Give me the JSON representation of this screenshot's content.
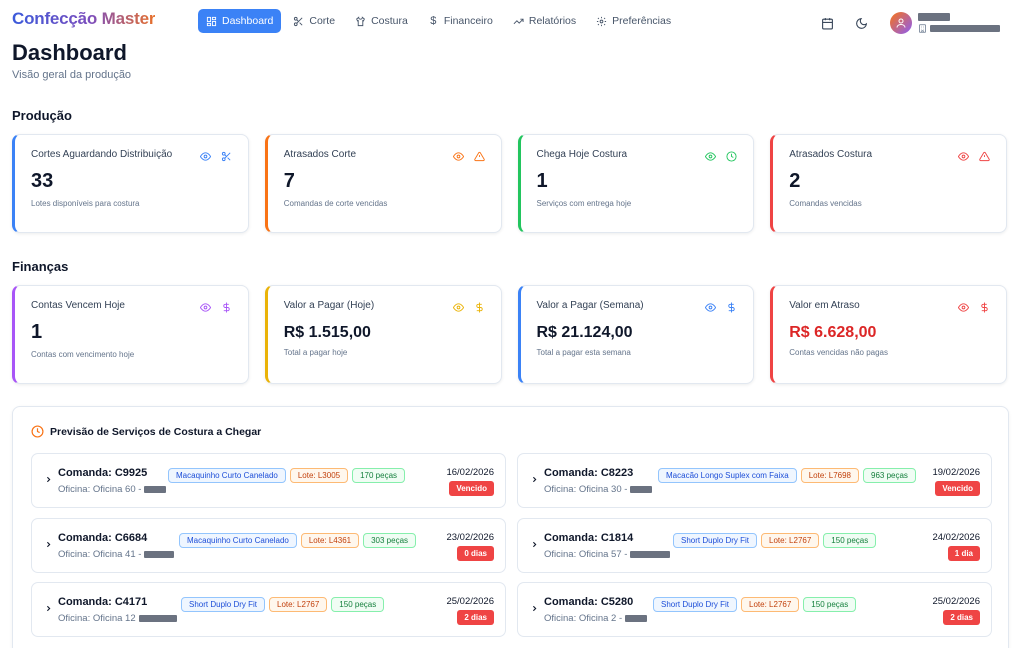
{
  "app": {
    "brand": "Confecção Master",
    "nav": [
      {
        "label": "Dashboard",
        "icon": "dashboard-icon",
        "active": true
      },
      {
        "label": "Corte",
        "icon": "scissors-icon",
        "active": false
      },
      {
        "label": "Costura",
        "icon": "shirt-icon",
        "active": false
      },
      {
        "label": "Financeiro",
        "icon": "dollar-icon",
        "active": false
      },
      {
        "label": "Relatórios",
        "icon": "trend-icon",
        "active": false
      },
      {
        "label": "Preferências",
        "icon": "gear-icon",
        "active": false
      }
    ]
  },
  "header": {
    "title": "Dashboard",
    "subtitle": "Visão geral da produção"
  },
  "sections": {
    "production": "Produção",
    "finance": "Finanças",
    "forecast": "Previsão de Serviços de Costura a Chegar"
  },
  "production_cards": [
    {
      "label": "Cortes Aguardando Distribuição",
      "value": "33",
      "hint": "Lotes disponíveis para costura",
      "accent": "#3b82f6",
      "icon2": "scissors-icon"
    },
    {
      "label": "Atrasados Corte",
      "value": "7",
      "hint": "Comandas de corte vencidas",
      "accent": "#f97316",
      "icon2": "warning-icon"
    },
    {
      "label": "Chega Hoje Costura",
      "value": "1",
      "hint": "Serviços com entrega hoje",
      "accent": "#22c55e",
      "icon2": "clock-icon"
    },
    {
      "label": "Atrasados Costura",
      "value": "2",
      "hint": "Comandas vencidas",
      "accent": "#ef4444",
      "icon2": "warning-icon"
    }
  ],
  "finance_cards": [
    {
      "label": "Contas Vencem Hoje",
      "value": "1",
      "hint": "Contas com vencimento hoje",
      "accent": "#a855f7",
      "icon2": "dollar-icon"
    },
    {
      "label": "Valor a Pagar (Hoje)",
      "value": "R$ 1.515,00",
      "hint": "Total a pagar hoje",
      "accent": "#eab308",
      "icon2": "dollar-icon"
    },
    {
      "label": "Valor a Pagar (Semana)",
      "value": "R$ 21.124,00",
      "hint": "Total a pagar esta semana",
      "accent": "#3b82f6",
      "icon2": "dollar-icon"
    },
    {
      "label": "Valor em Atraso",
      "value": "R$ 6.628,00",
      "hint": "Contas vencidas não pagas",
      "accent": "#ef4444",
      "icon2": "dollar-icon"
    }
  ],
  "services": [
    {
      "title": "Comanda: C9925",
      "workshop": "Oficina: Oficina 60 -",
      "product": "Macaquinho Curto Canelado",
      "lote": "Lote: L3005",
      "qty": "170 peças",
      "date": "16/02/2026",
      "status": "Vencido"
    },
    {
      "title": "Comanda: C8223",
      "workshop": "Oficina: Oficina 30 -",
      "product": "Macacão Longo Suplex com Faixa",
      "lote": "Lote: L7698",
      "qty": "963 peças",
      "date": "19/02/2026",
      "status": "Vencido"
    },
    {
      "title": "Comanda: C6684",
      "workshop": "Oficina: Oficina 41 -",
      "product": "Macaquinho Curto Canelado",
      "lote": "Lote: L4361",
      "qty": "303 peças",
      "date": "23/02/2026",
      "status": "0 dias"
    },
    {
      "title": "Comanda: C1814",
      "workshop": "Oficina: Oficina 57 -",
      "product": "Short Duplo Dry Fit",
      "lote": "Lote: L2767",
      "qty": "150 peças",
      "date": "24/02/2026",
      "status": "1 dia"
    },
    {
      "title": "Comanda: C4171",
      "workshop": "Oficina: Oficina 12",
      "product": "Short Duplo Dry Fit",
      "lote": "Lote: L2767",
      "qty": "150 peças",
      "date": "25/02/2026",
      "status": "2 dias"
    },
    {
      "title": "Comanda: C5280",
      "workshop": "Oficina: Oficina 2 -",
      "product": "Short Duplo Dry Fit",
      "lote": "Lote: L2767",
      "qty": "150 peças",
      "date": "25/02/2026",
      "status": "2 dias"
    }
  ]
}
